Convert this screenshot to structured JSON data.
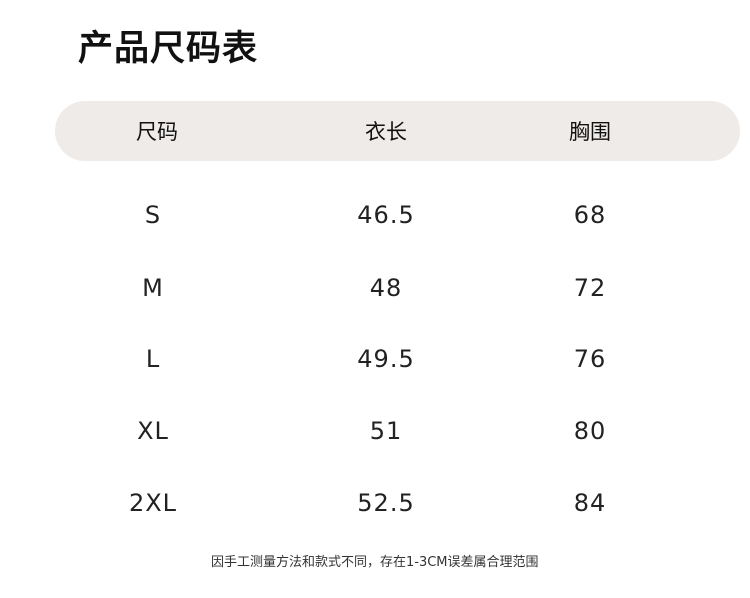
{
  "title": "产品尺码表",
  "headers": [
    "尺码",
    "衣长",
    "胸围"
  ],
  "rows": [
    [
      "S",
      "46.5",
      "68"
    ],
    [
      "M",
      "48",
      "72"
    ],
    [
      "L",
      "49.5",
      "76"
    ],
    [
      "XL",
      "51",
      "80"
    ],
    [
      "2XL",
      "52.5",
      "84"
    ]
  ],
  "note": "因手工测量方法和款式不同，存在1-3CM误差属合理范围",
  "colors": {
    "header_bg": "#efebe8"
  }
}
